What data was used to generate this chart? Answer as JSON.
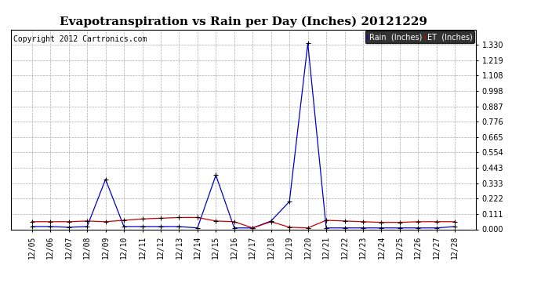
{
  "title": "Evapotranspiration vs Rain per Day (Inches) 20121229",
  "copyright": "Copyright 2012 Cartronics.com",
  "x_labels": [
    "12/05",
    "12/06",
    "12/07",
    "12/08",
    "12/09",
    "12/10",
    "12/11",
    "12/12",
    "12/13",
    "12/14",
    "12/15",
    "12/16",
    "12/17",
    "12/18",
    "12/19",
    "12/20",
    "12/21",
    "12/22",
    "12/23",
    "12/24",
    "12/25",
    "12/26",
    "12/27",
    "12/28"
  ],
  "rain_inches": [
    0.02,
    0.02,
    0.015,
    0.02,
    0.36,
    0.02,
    0.02,
    0.02,
    0.02,
    0.01,
    0.39,
    0.01,
    0.01,
    0.06,
    0.2,
    1.34,
    0.01,
    0.01,
    0.01,
    0.01,
    0.01,
    0.01,
    0.01,
    0.02
  ],
  "et_inches": [
    0.055,
    0.055,
    0.055,
    0.06,
    0.055,
    0.065,
    0.075,
    0.08,
    0.085,
    0.085,
    0.06,
    0.055,
    0.01,
    0.055,
    0.015,
    0.01,
    0.065,
    0.06,
    0.055,
    0.05,
    0.05,
    0.055,
    0.055,
    0.055
  ],
  "rain_color": "#0000cc",
  "et_color": "#cc0000",
  "background_color": "#ffffff",
  "grid_color": "#aaaaaa",
  "ylim_min": 0.0,
  "ylim_max": 1.441,
  "yticks": [
    0.0,
    0.111,
    0.222,
    0.333,
    0.443,
    0.554,
    0.665,
    0.776,
    0.887,
    0.998,
    1.108,
    1.219,
    1.33
  ],
  "legend_rain_label": "Rain  (Inches)",
  "legend_et_label": "ET  (Inches)",
  "legend_rain_bg": "#0000cc",
  "legend_et_bg": "#cc0000",
  "title_fontsize": 11,
  "copyright_fontsize": 7,
  "tick_fontsize": 7
}
